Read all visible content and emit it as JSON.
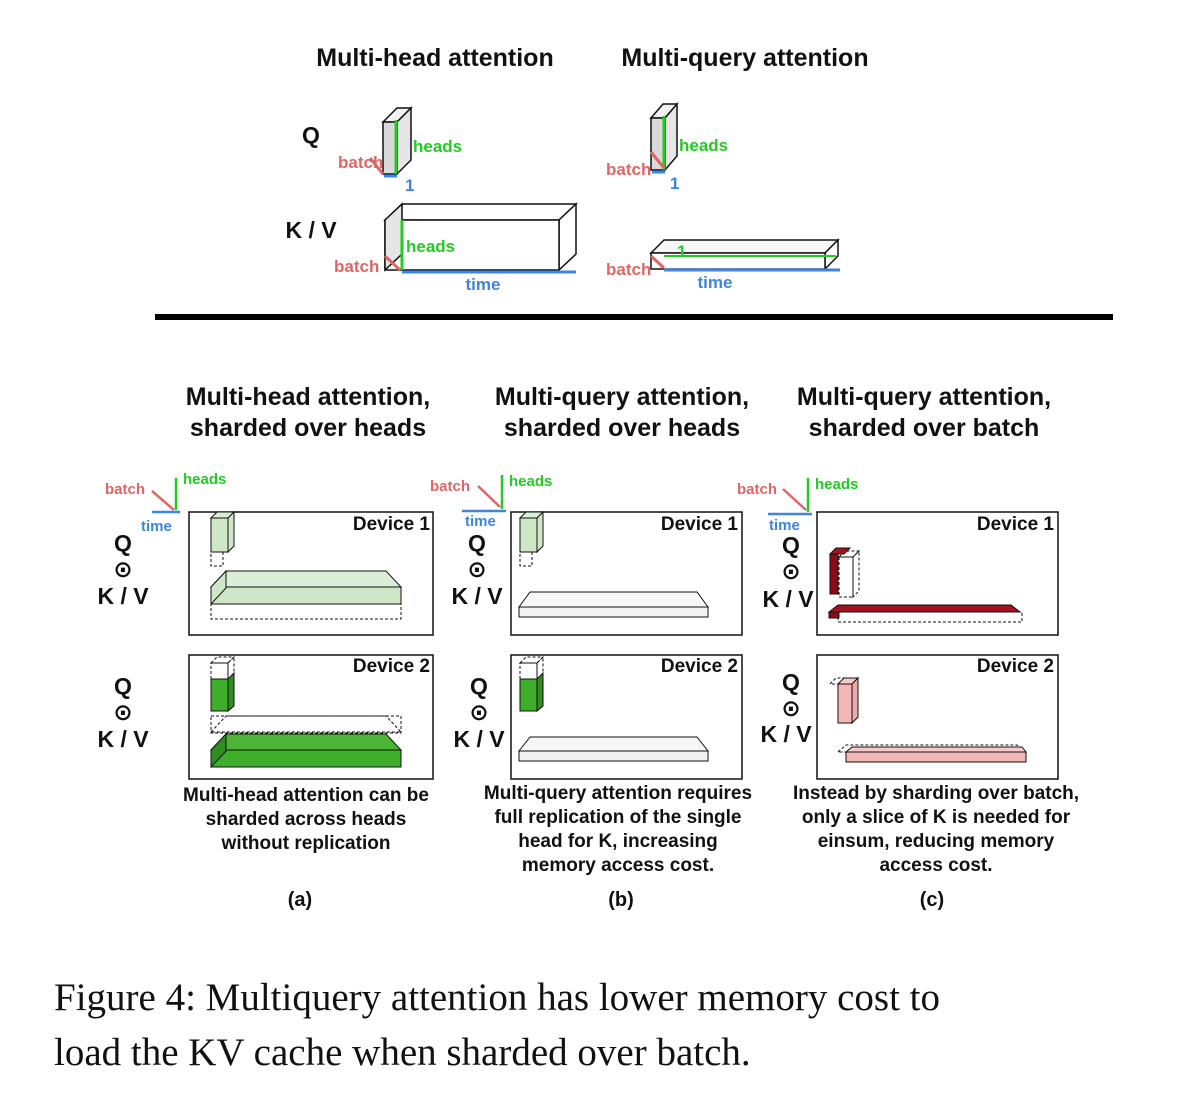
{
  "top": {
    "mha_title": "Multi-head attention",
    "mqa_title": "Multi-query attention",
    "q_label": "Q",
    "kv_label": "K / V",
    "axis_batch": "batch",
    "axis_heads": "heads",
    "axis_time": "time",
    "axis_one": "1"
  },
  "panels": [
    {
      "title_line1": "Multi-head attention,",
      "title_line2": "sharded over heads",
      "axis_batch": "batch",
      "axis_heads": "heads",
      "axis_time": "time",
      "device1": "Device 1",
      "device2": "Device 2",
      "q_label": "Q",
      "odot": "⊙",
      "kv_label": "K / V",
      "caption": [
        "Multi-head attention can be",
        "sharded across heads",
        "without replication"
      ],
      "sub": "(a)"
    },
    {
      "title_line1": "Multi-query attention,",
      "title_line2": "sharded over heads",
      "axis_batch": "batch",
      "axis_heads": "heads",
      "axis_time": "time",
      "device1": "Device 1",
      "device2": "Device 2",
      "q_label": "Q",
      "odot": "⊙",
      "kv_label": "K / V",
      "caption": [
        "Multi-query attention requires",
        "full replication of the single",
        "head for K, increasing",
        "memory access cost."
      ],
      "sub": "(b)"
    },
    {
      "title_line1": "Multi-query attention,",
      "title_line2": "sharded over batch",
      "axis_batch": "batch",
      "axis_heads": "heads",
      "axis_time": "time",
      "device1": "Device 1",
      "device2": "Device 2",
      "q_label": "Q",
      "odot": "⊙",
      "kv_label": "K / V",
      "caption": [
        "Instead by sharding over batch,",
        "only a slice of K is needed for",
        "einsum, reducing memory",
        "access cost."
      ],
      "sub": "(c)"
    }
  ],
  "figure_caption": [
    "Figure 4: Multiquery attention has lower memory cost to",
    "load the KV cache when sharded over batch."
  ],
  "colors": {
    "batch": "#e06666",
    "heads": "#22cc22",
    "time": "#3d85e0",
    "light_green": "#cfe6c7",
    "dark_green": "#3fae2a",
    "dark_red": "#8b0a1a",
    "light_red": "#f4b6b6"
  }
}
